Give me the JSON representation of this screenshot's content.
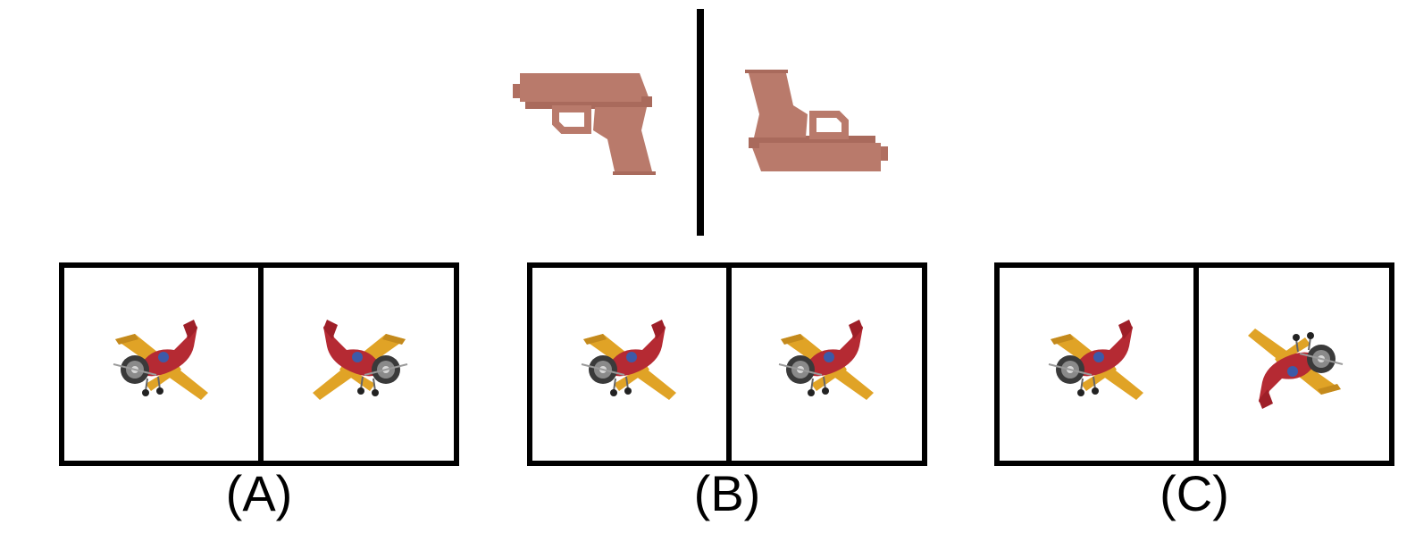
{
  "example": {
    "left_image": "pistol-icon",
    "right_image": "pistol-icon",
    "colors": {
      "pistol": "#b97a6b",
      "pistol_shade": "#a96a5c"
    }
  },
  "options": [
    {
      "label": "(A)",
      "left_image": "toy-airplane-icon",
      "right_image": "toy-airplane-icon"
    },
    {
      "label": "(B)",
      "left_image": "toy-airplane-icon",
      "right_image": "toy-airplane-icon"
    },
    {
      "label": "(C)",
      "left_image": "toy-airplane-icon",
      "right_image": "toy-airplane-icon"
    }
  ],
  "colors": {
    "plane_body": "#b52a33",
    "plane_wing": "#e0a326",
    "plane_nose": "#3a3a3a",
    "frame": "#000000"
  }
}
